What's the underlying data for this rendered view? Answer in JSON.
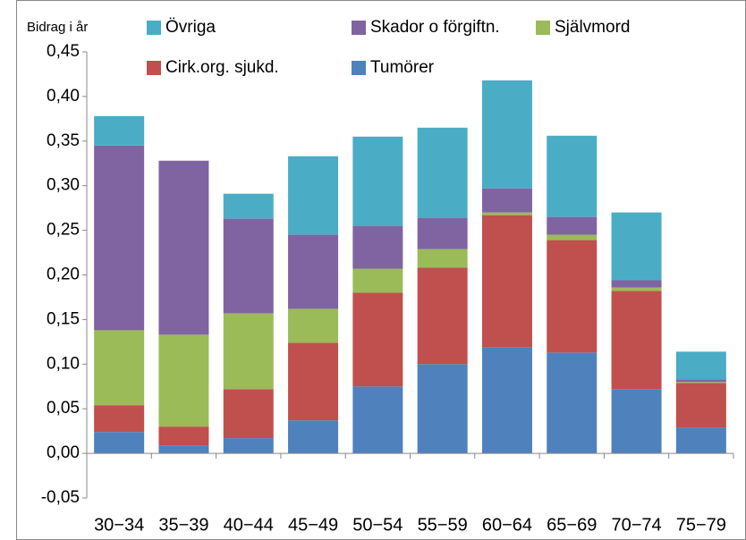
{
  "chart_data": {
    "type": "stacked_bar",
    "ylabel": "Bidrag i år",
    "categories": [
      "30−34",
      "35−39",
      "40−44",
      "45−49",
      "50−54",
      "55−59",
      "60−64",
      "65−69",
      "70−74",
      "75−79"
    ],
    "series": [
      {
        "name": "Tumörer",
        "color": "#4f81bd",
        "values": [
          0.024,
          0.009,
          0.017,
          0.037,
          0.075,
          0.1,
          0.119,
          0.113,
          0.072,
          0.029
        ]
      },
      {
        "name": "Cirk.org. sjukd.",
        "color": "#c0504d",
        "values": [
          0.03,
          0.021,
          0.055,
          0.087,
          0.105,
          0.108,
          0.148,
          0.126,
          0.11,
          0.05
        ]
      },
      {
        "name": "Självmord",
        "color": "#9bbb59",
        "values": [
          0.084,
          0.103,
          0.085,
          0.038,
          0.027,
          0.021,
          0.003,
          0.006,
          0.004,
          0.001
        ]
      },
      {
        "name": "Skador o förgiftn.",
        "color": "#8064a2",
        "values": [
          0.207,
          0.195,
          0.106,
          0.083,
          0.048,
          0.035,
          0.027,
          0.02,
          0.008,
          0.003
        ]
      },
      {
        "name": "Övriga",
        "color": "#4bacc6",
        "values": [
          0.033,
          0,
          0.028,
          0.088,
          0.1,
          0.101,
          0.121,
          0.091,
          0.076,
          0.031
        ]
      }
    ],
    "ylim": [
      -0.05,
      0.45
    ],
    "yticks": [
      {
        "value": -0.05,
        "label": "-0,05"
      },
      {
        "value": 0,
        "label": "0,00"
      },
      {
        "value": 0.05,
        "label": "0,05"
      },
      {
        "value": 0.1,
        "label": "0,10"
      },
      {
        "value": 0.15,
        "label": "0,15"
      },
      {
        "value": 0.2,
        "label": "0,20"
      },
      {
        "value": 0.25,
        "label": "0,25"
      },
      {
        "value": 0.3,
        "label": "0,30"
      },
      {
        "value": 0.35,
        "label": "0,35"
      },
      {
        "value": 0.4,
        "label": "0,40"
      },
      {
        "value": 0.45,
        "label": "0,45"
      }
    ],
    "grid": false
  }
}
